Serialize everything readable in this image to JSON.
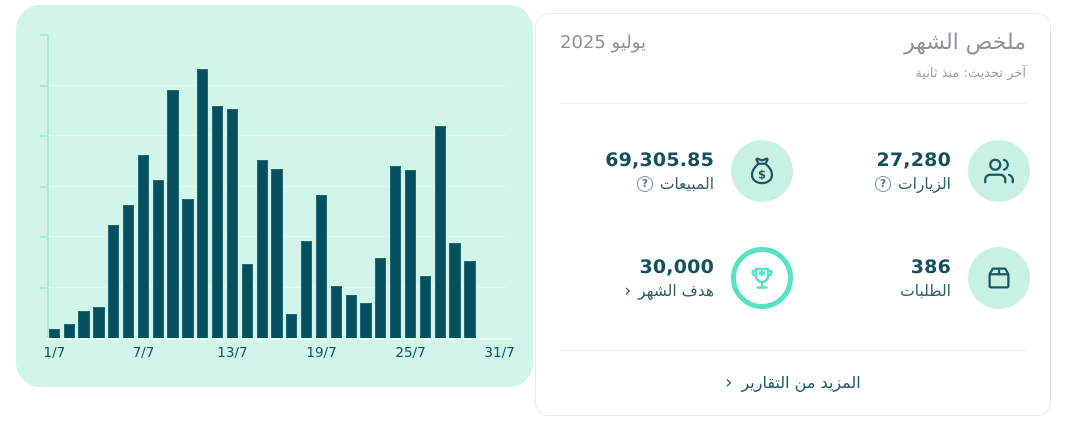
{
  "chart_card": {
    "bg_color": "#d2f5e9",
    "bar_color": "#05505e",
    "x_tick_labels": [
      "1/7",
      "7/7",
      "13/7",
      "19/7",
      "25/7",
      "31/7"
    ]
  },
  "chart_data": {
    "type": "bar",
    "title": "",
    "xlabel": "",
    "ylabel": "",
    "note": "daily bars for July; y-axis has tick marks but no numeric labels; values are relative heights estimated from gridlines (gridline step = 50.5 units)",
    "categories": [
      "1/7",
      "2/7",
      "3/7",
      "4/7",
      "5/7",
      "6/7",
      "7/7",
      "8/7",
      "9/7",
      "10/7",
      "11/7",
      "12/7",
      "13/7",
      "14/7",
      "15/7",
      "16/7",
      "17/7",
      "18/7",
      "19/7",
      "20/7",
      "21/7",
      "22/7",
      "23/7",
      "24/7",
      "25/7",
      "26/7",
      "27/7",
      "28/7",
      "29/7",
      "30/7",
      "31/7"
    ],
    "values": [
      9,
      14,
      27,
      31,
      113,
      133,
      183,
      158,
      248,
      139,
      269,
      232,
      229,
      74,
      178,
      169,
      24,
      97,
      143,
      52,
      43,
      35,
      80,
      172,
      168,
      62,
      212,
      95,
      77,
      0,
      0
    ],
    "ylim": [
      0,
      303
    ],
    "gridlines": 5,
    "legend": "none",
    "x_ticks_shown": [
      "1/7",
      "7/7",
      "13/7",
      "19/7",
      "25/7",
      "31/7"
    ]
  },
  "summary": {
    "title": "ملخص الشهر",
    "period": "يوليو 2025",
    "last_update": "آخر تحديث: منذ ثانية",
    "help_glyph": "?",
    "stats": {
      "visits": {
        "value": "27,280",
        "label": "الزيارات",
        "icon": "users-icon"
      },
      "sales": {
        "value": "69,305.85",
        "label": "المبيعات",
        "icon": "money-bag-icon"
      },
      "orders": {
        "value": "386",
        "label": "الطلبات",
        "icon": "package-icon"
      },
      "goal": {
        "value": "30,000",
        "label": "هدف الشهر",
        "icon": "trophy-icon",
        "chevron": "‹"
      }
    },
    "more_link": {
      "label": "المزيد من التقارير",
      "chevron": "‹"
    }
  },
  "colors": {
    "accent_dark_teal": "#05505e",
    "mint_bg": "#d2f5e9",
    "icon_circle_bg": "#c9f1e3",
    "turquoise_ring": "#57e2c4",
    "stat_value_text": "#16505d",
    "stat_label_text": "#2c606c",
    "muted_gray_text": "#8e939b",
    "link_text": "#1b5b68",
    "card_border": "#e9eaee"
  }
}
